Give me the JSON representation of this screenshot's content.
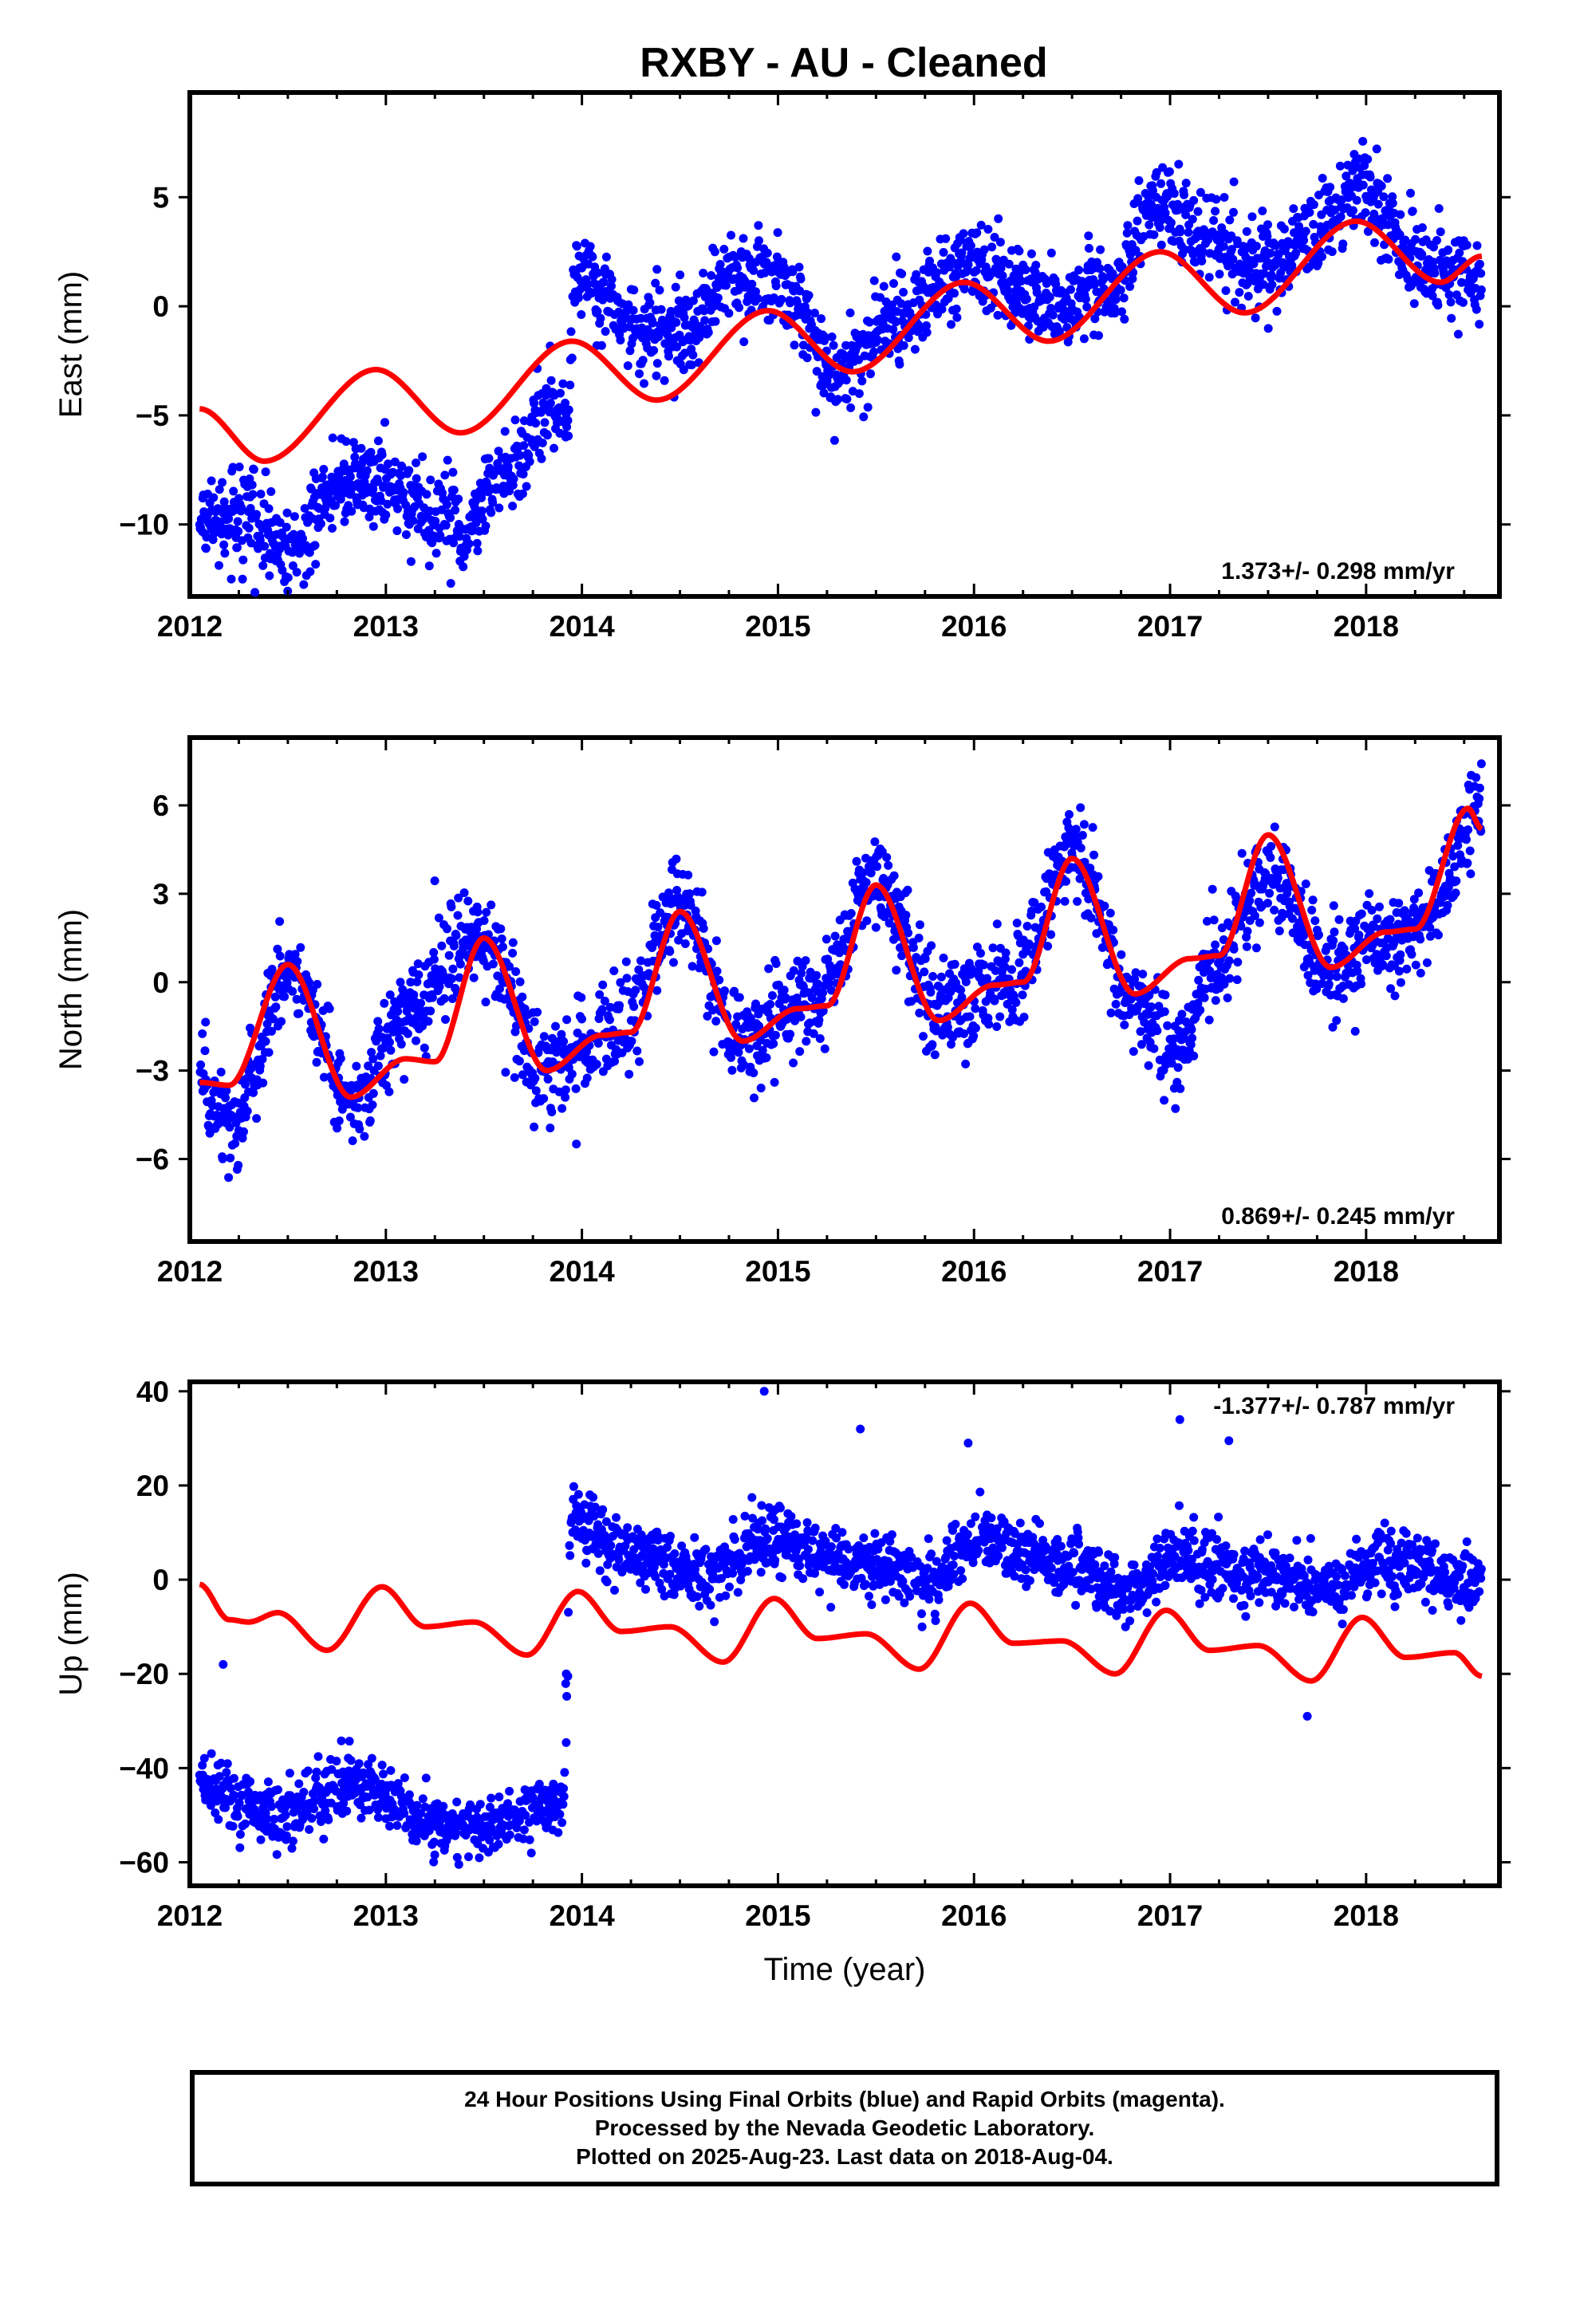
{
  "title": "RXBY  - AU - Cleaned",
  "footer": {
    "line1": "24 Hour Positions Using Final Orbits (blue) and Rapid Orbits (magenta).",
    "line2": "Processed by the Nevada Geodetic Laboratory.",
    "line3": "Plotted on 2025-Aug-23. Last data on 2018-Aug-04."
  },
  "colors": {
    "points": "#0000ff",
    "model": "#ff0000",
    "frame": "#000000"
  },
  "chart_data": [
    {
      "type": "scatter",
      "ylabel": "East (mm)",
      "xlabel": "",
      "xlim": [
        2012,
        2018.68
      ],
      "ylim": [
        -13.3,
        9.8
      ],
      "x_ticks": [
        "2012",
        "2013",
        "2014",
        "2015",
        "2016",
        "2017",
        "2018"
      ],
      "y_ticks": [
        -10,
        -5,
        0,
        5
      ],
      "rate_text": "1.373+/- 0.298 mm/yr",
      "rate_position": "bottom-right",
      "data_span": [
        2012.05,
        2018.59
      ],
      "series": [
        {
          "role": "points",
          "color": "#0000ff",
          "trend": [
            [
              2012.05,
              -10.0
            ],
            [
              2012.3,
              -9.5
            ],
            [
              2012.5,
              -11.2
            ],
            [
              2012.8,
              -8.0
            ],
            [
              2013.0,
              -8.3
            ],
            [
              2013.2,
              -9.2
            ],
            [
              2013.4,
              -10.2
            ],
            [
              2013.6,
              -7.8
            ],
            [
              2013.85,
              -4.5
            ],
            [
              2013.93,
              -5.8
            ],
            [
              2013.96,
              1.5
            ],
            [
              2014.3,
              -1.0
            ],
            [
              2014.5,
              -1.2
            ],
            [
              2014.8,
              1.5
            ],
            [
              2015.0,
              1.2
            ],
            [
              2015.3,
              -3.0
            ],
            [
              2015.6,
              -0.5
            ],
            [
              2016.0,
              2.0
            ],
            [
              2016.4,
              0.0
            ],
            [
              2016.7,
              1.0
            ],
            [
              2016.95,
              4.8
            ],
            [
              2017.2,
              3.0
            ],
            [
              2017.5,
              1.5
            ],
            [
              2017.75,
              3.5
            ],
            [
              2017.95,
              5.5
            ],
            [
              2018.3,
              2.0
            ],
            [
              2018.59,
              1.2
            ]
          ],
          "noise_sd": 1.0
        },
        {
          "role": "model",
          "color": "#ff0000",
          "trend": [
            [
              2012.05,
              -4.7
            ],
            [
              2012.38,
              -7.1
            ],
            [
              2012.95,
              -2.9
            ],
            [
              2013.38,
              -5.8
            ],
            [
              2013.95,
              -1.6
            ],
            [
              2014.38,
              -4.3
            ],
            [
              2014.95,
              -0.2
            ],
            [
              2015.38,
              -3.0
            ],
            [
              2015.95,
              1.1
            ],
            [
              2016.38,
              -1.6
            ],
            [
              2016.95,
              2.5
            ],
            [
              2017.38,
              -0.3
            ],
            [
              2017.95,
              3.9
            ],
            [
              2018.38,
              1.1
            ],
            [
              2018.59,
              2.3
            ]
          ]
        }
      ]
    },
    {
      "type": "scatter",
      "ylabel": "North (mm)",
      "xlabel": "",
      "xlim": [
        2012,
        2018.68
      ],
      "ylim": [
        -8.8,
        8.3
      ],
      "x_ticks": [
        "2012",
        "2013",
        "2014",
        "2015",
        "2016",
        "2017",
        "2018"
      ],
      "y_ticks": [
        -6,
        -3,
        0,
        3,
        6
      ],
      "rate_text": "0.869+/- 0.245 mm/yr",
      "rate_position": "bottom-right",
      "data_span": [
        2012.05,
        2018.59
      ],
      "series": [
        {
          "role": "points",
          "color": "#0000ff",
          "trend": [
            [
              2012.05,
              -3.5
            ],
            [
              2012.2,
              -5.0
            ],
            [
              2012.5,
              0.5
            ],
            [
              2012.82,
              -4.0
            ],
            [
              2013.1,
              -1.0
            ],
            [
              2013.5,
              1.5
            ],
            [
              2013.8,
              -3.0
            ],
            [
              2014.2,
              -1.5
            ],
            [
              2014.5,
              2.5
            ],
            [
              2014.8,
              -2.0
            ],
            [
              2015.2,
              -0.5
            ],
            [
              2015.5,
              3.5
            ],
            [
              2015.82,
              -1.0
            ],
            [
              2016.2,
              0.0
            ],
            [
              2016.5,
              4.5
            ],
            [
              2016.82,
              -0.5
            ],
            [
              2017.05,
              -2.5
            ],
            [
              2017.2,
              0.5
            ],
            [
              2017.5,
              3.5
            ],
            [
              2017.82,
              0.5
            ],
            [
              2018.1,
              1.5
            ],
            [
              2018.3,
              2.0
            ],
            [
              2018.59,
              6.0
            ]
          ],
          "noise_sd": 0.8
        },
        {
          "role": "model",
          "color": "#ff0000",
          "trend": [
            [
              2012.05,
              -3.4
            ],
            [
              2012.2,
              -3.5
            ],
            [
              2012.5,
              0.6
            ],
            [
              2012.82,
              -3.9
            ],
            [
              2013.1,
              -2.6
            ],
            [
              2013.25,
              -2.7
            ],
            [
              2013.5,
              1.5
            ],
            [
              2013.82,
              -3.0
            ],
            [
              2014.1,
              -1.8
            ],
            [
              2014.25,
              -1.7
            ],
            [
              2014.5,
              2.4
            ],
            [
              2014.82,
              -2.0
            ],
            [
              2015.1,
              -0.9
            ],
            [
              2015.25,
              -0.8
            ],
            [
              2015.5,
              3.3
            ],
            [
              2015.82,
              -1.3
            ],
            [
              2016.1,
              -0.1
            ],
            [
              2016.25,
              0.0
            ],
            [
              2016.5,
              4.2
            ],
            [
              2016.82,
              -0.4
            ],
            [
              2017.1,
              0.8
            ],
            [
              2017.25,
              0.9
            ],
            [
              2017.5,
              5.0
            ],
            [
              2017.82,
              0.5
            ],
            [
              2018.1,
              1.7
            ],
            [
              2018.25,
              1.8
            ],
            [
              2018.52,
              5.9
            ],
            [
              2018.59,
              5.2
            ]
          ]
        }
      ]
    },
    {
      "type": "scatter",
      "ylabel": "Up (mm)",
      "xlabel": "Time (year)",
      "xlim": [
        2012,
        2018.68
      ],
      "ylim": [
        -65,
        42
      ],
      "x_ticks": [
        "2012",
        "2013",
        "2014",
        "2015",
        "2016",
        "2017",
        "2018"
      ],
      "y_ticks": [
        -60,
        -40,
        -20,
        0,
        20,
        40
      ],
      "rate_text": "-1.377+/- 0.787 mm/yr",
      "rate_position": "top-right",
      "data_span": [
        2012.05,
        2018.59
      ],
      "series": [
        {
          "role": "points",
          "color": "#0000ff",
          "trend": [
            [
              2012.05,
              -43.0
            ],
            [
              2012.4,
              -50.0
            ],
            [
              2012.9,
              -44.0
            ],
            [
              2013.3,
              -53.0
            ],
            [
              2013.9,
              -48.0
            ],
            [
              2013.95,
              13.0
            ],
            [
              2014.2,
              5.0
            ],
            [
              2014.6,
              2.0
            ],
            [
              2015.0,
              8.0
            ],
            [
              2015.4,
              4.0
            ],
            [
              2015.8,
              0.0
            ],
            [
              2016.0,
              9.0
            ],
            [
              2016.5,
              3.0
            ],
            [
              2016.8,
              -3.0
            ],
            [
              2017.0,
              4.0
            ],
            [
              2017.5,
              1.0
            ],
            [
              2017.8,
              -2.0
            ],
            [
              2018.1,
              4.0
            ],
            [
              2018.59,
              -1.0
            ]
          ],
          "noise_sd": 3.5,
          "outliers": [
            [
              2014.93,
              40.0
            ],
            [
              2015.42,
              32.0
            ],
            [
              2015.97,
              29.0
            ],
            [
              2017.05,
              34.0
            ],
            [
              2017.3,
              29.5
            ],
            [
              2017.7,
              -29.0
            ],
            [
              2012.17,
              -18.0
            ],
            [
              2013.92,
              -20.0
            ]
          ]
        },
        {
          "role": "model",
          "color": "#ff0000",
          "trend": [
            [
              2012.05,
              -1.0
            ],
            [
              2012.2,
              -8.5
            ],
            [
              2012.3,
              -9.0
            ],
            [
              2012.45,
              -7.0
            ],
            [
              2012.7,
              -15.0
            ],
            [
              2012.98,
              -1.5
            ],
            [
              2013.2,
              -10.0
            ],
            [
              2013.45,
              -9.0
            ],
            [
              2013.72,
              -16.0
            ],
            [
              2013.98,
              -2.5
            ],
            [
              2014.2,
              -11.0
            ],
            [
              2014.45,
              -10.0
            ],
            [
              2014.72,
              -17.5
            ],
            [
              2014.98,
              -4.0
            ],
            [
              2015.2,
              -12.5
            ],
            [
              2015.45,
              -11.5
            ],
            [
              2015.72,
              -19.0
            ],
            [
              2015.98,
              -5.0
            ],
            [
              2016.2,
              -13.5
            ],
            [
              2016.45,
              -13.0
            ],
            [
              2016.72,
              -20.0
            ],
            [
              2016.98,
              -6.5
            ],
            [
              2017.2,
              -15.0
            ],
            [
              2017.45,
              -14.0
            ],
            [
              2017.72,
              -21.5
            ],
            [
              2017.98,
              -8.0
            ],
            [
              2018.2,
              -16.5
            ],
            [
              2018.45,
              -15.5
            ],
            [
              2018.59,
              -20.5
            ]
          ]
        }
      ]
    }
  ]
}
